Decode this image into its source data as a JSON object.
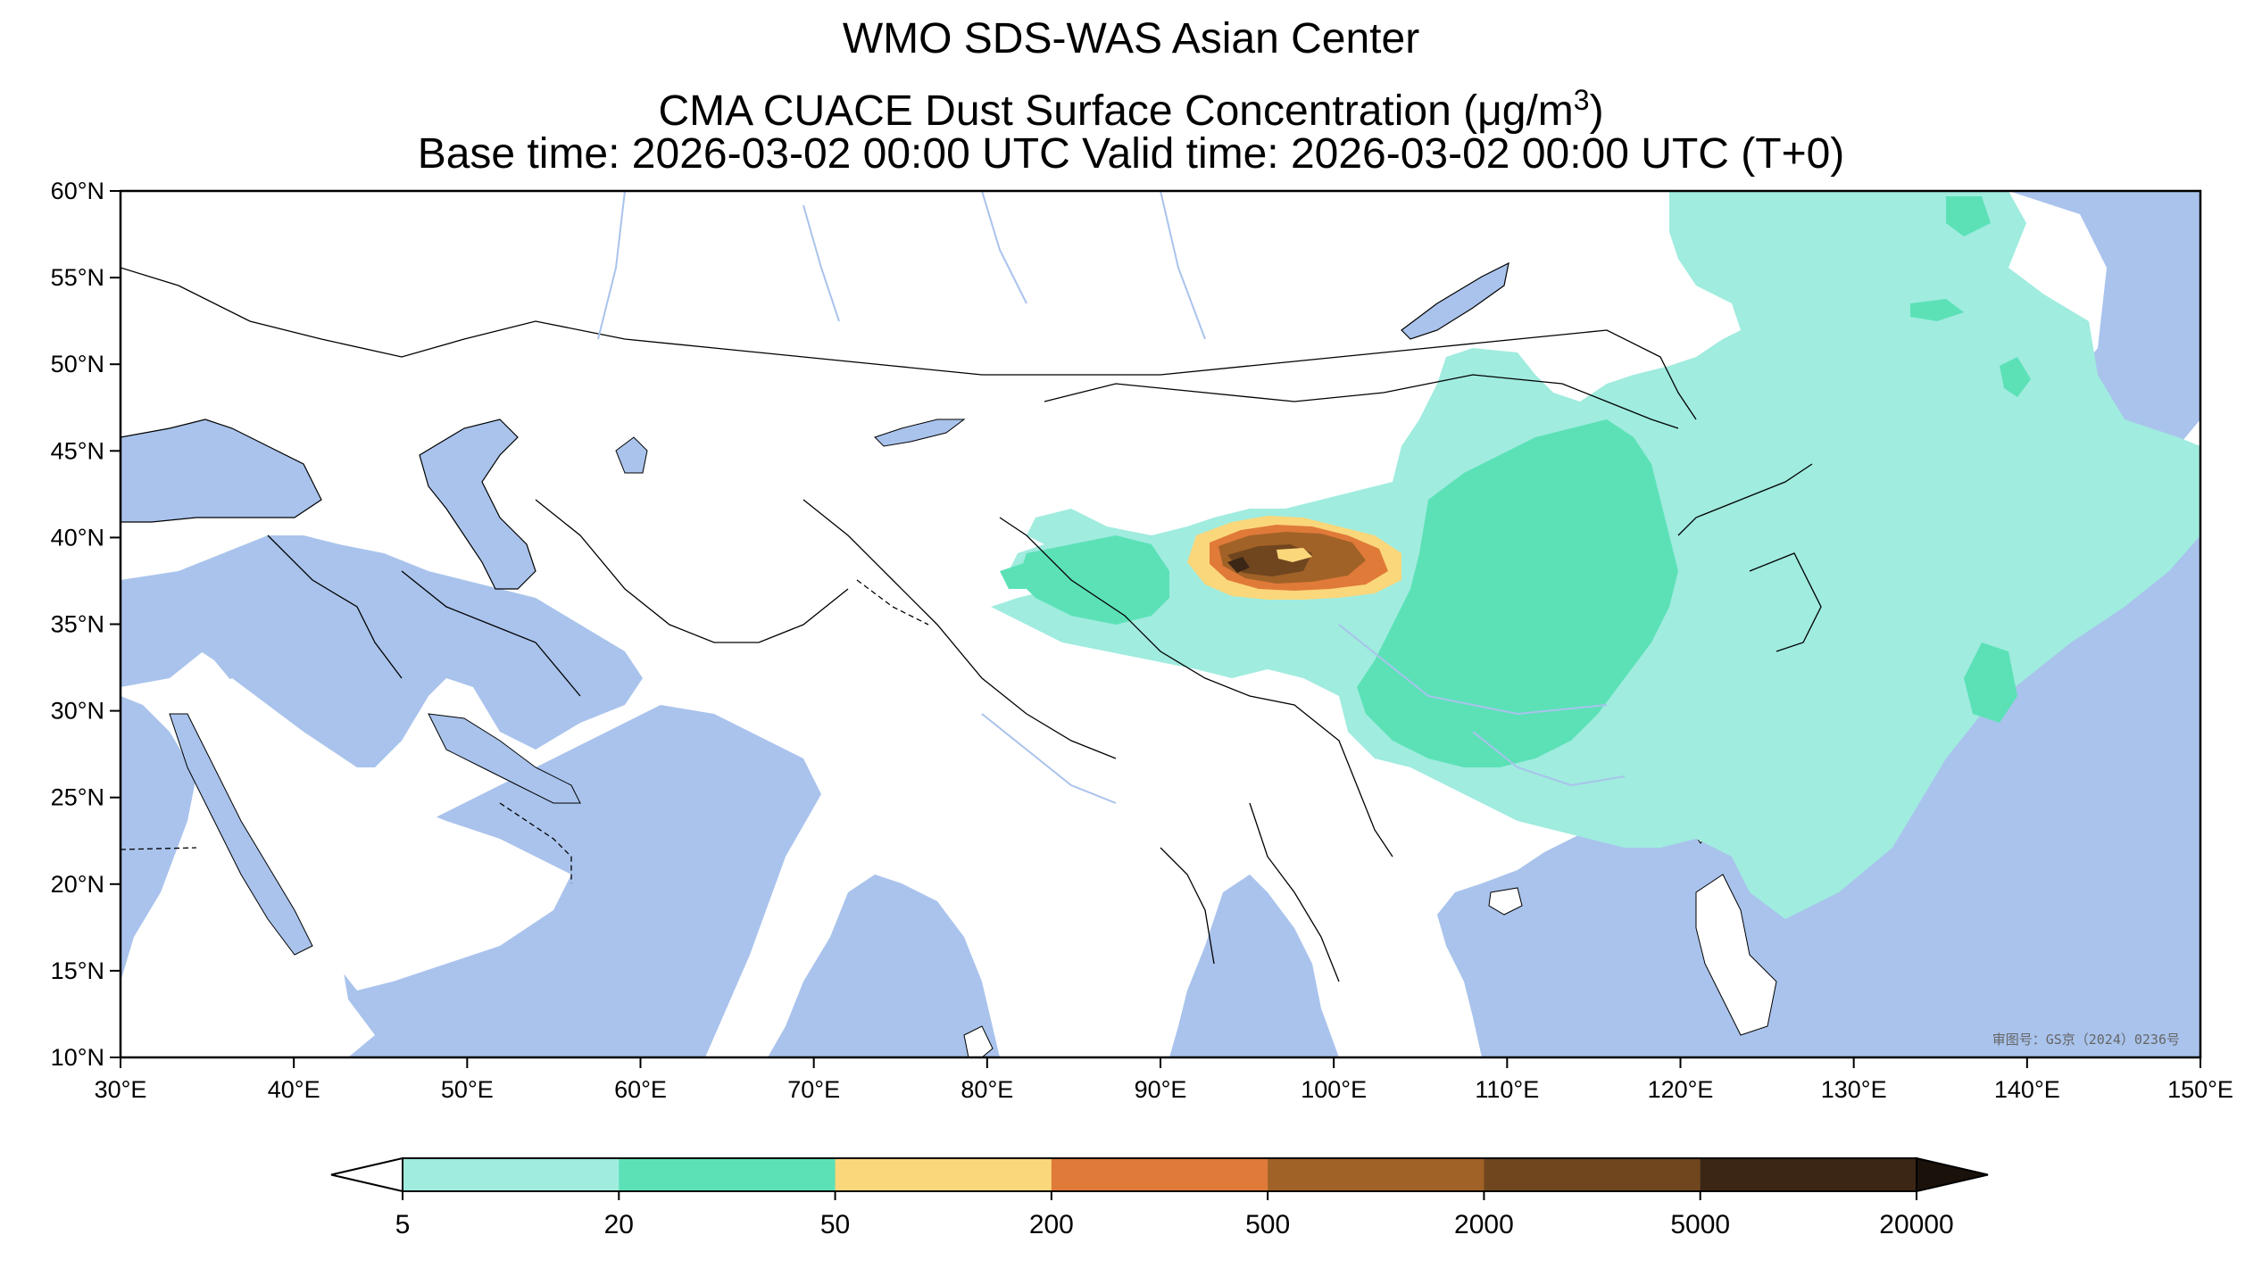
{
  "title": {
    "line1": "WMO SDS-WAS Asian Center",
    "line2_prefix": "CMA CUACE Dust Surface Concentration (",
    "line2_unit": "μg/m",
    "line2_sup": "3",
    "line2_suffix": ")",
    "line3": "Base time: 2026-03-02 00:00 UTC Valid time: 2026-03-02 00:00 UTC (T+0)"
  },
  "map": {
    "lon_range": [
      30,
      150
    ],
    "lat_range": [
      10,
      60
    ],
    "ocean_color": "#a9c3ec",
    "land_color": "#ffffff",
    "approval_text": "审图号：GS京（2024）0236号"
  },
  "x_ticks": [
    "30°E",
    "40°E",
    "50°E",
    "60°E",
    "70°E",
    "80°E",
    "90°E",
    "100°E",
    "110°E",
    "120°E",
    "130°E",
    "140°E",
    "150°E"
  ],
  "y_ticks": [
    "60°N",
    "55°N",
    "50°N",
    "45°N",
    "40°N",
    "35°N",
    "30°N",
    "25°N",
    "20°N",
    "15°N",
    "10°N"
  ],
  "colorbar": {
    "levels": [
      "5",
      "20",
      "50",
      "200",
      "500",
      "2000",
      "5000",
      "20000"
    ],
    "colors": [
      "#a0ecdf",
      "#5ce1b7",
      "#fbd77b",
      "#e07a39",
      "#a16228",
      "#70461f",
      "#3b2615"
    ],
    "under_color": "#ffffff",
    "over_color": "#1a110a"
  }
}
